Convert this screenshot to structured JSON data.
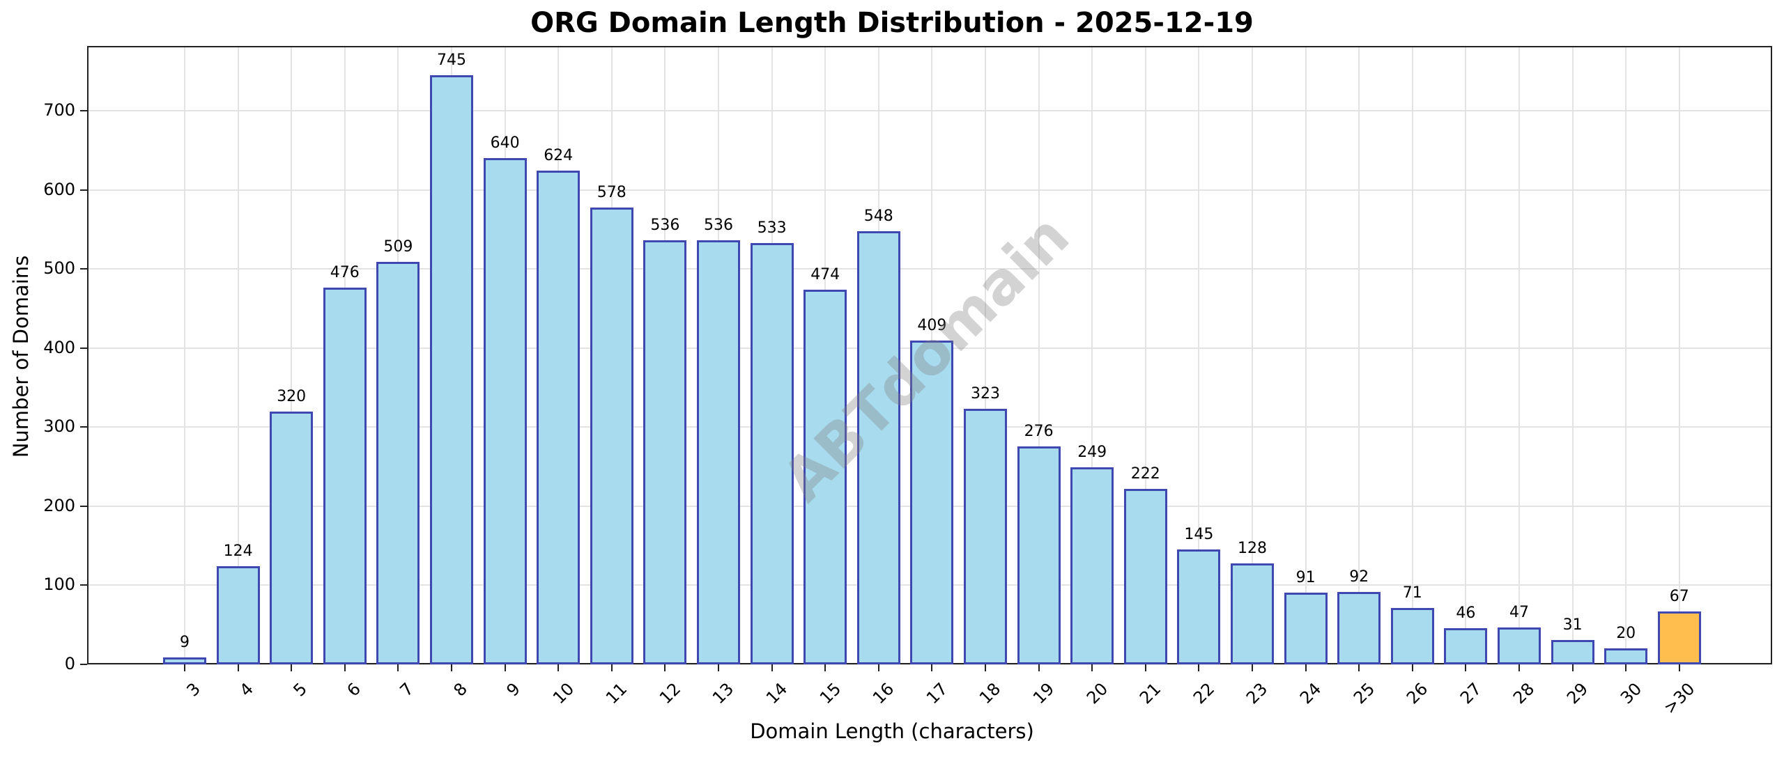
{
  "chart_data": {
    "type": "bar",
    "title": "ORG Domain Length Distribution - 2025-12-19",
    "xlabel": "Domain Length (characters)",
    "ylabel": "Number of Domains",
    "categories": [
      "3",
      "4",
      "5",
      "6",
      "7",
      "8",
      "9",
      "10",
      "11",
      "12",
      "13",
      "14",
      "15",
      "16",
      "17",
      "18",
      "19",
      "20",
      "21",
      "22",
      "23",
      "24",
      "25",
      "26",
      "27",
      "28",
      "29",
      "30",
      ">30"
    ],
    "values": [
      9,
      124,
      320,
      476,
      509,
      745,
      640,
      624,
      578,
      536,
      536,
      533,
      474,
      548,
      409,
      323,
      276,
      249,
      222,
      145,
      128,
      91,
      92,
      71,
      46,
      47,
      31,
      20,
      67
    ],
    "bar_colors": {
      "default": "#a8dbee",
      "highlight": "#ffbe4d",
      "edge": "#3f48b0"
    },
    "highlight_category": ">30",
    "ylim": [
      0,
      780
    ],
    "yticks": [
      0,
      100,
      200,
      300,
      400,
      500,
      600,
      700
    ],
    "grid": true,
    "legend": null,
    "watermark": "ABTdomain"
  }
}
